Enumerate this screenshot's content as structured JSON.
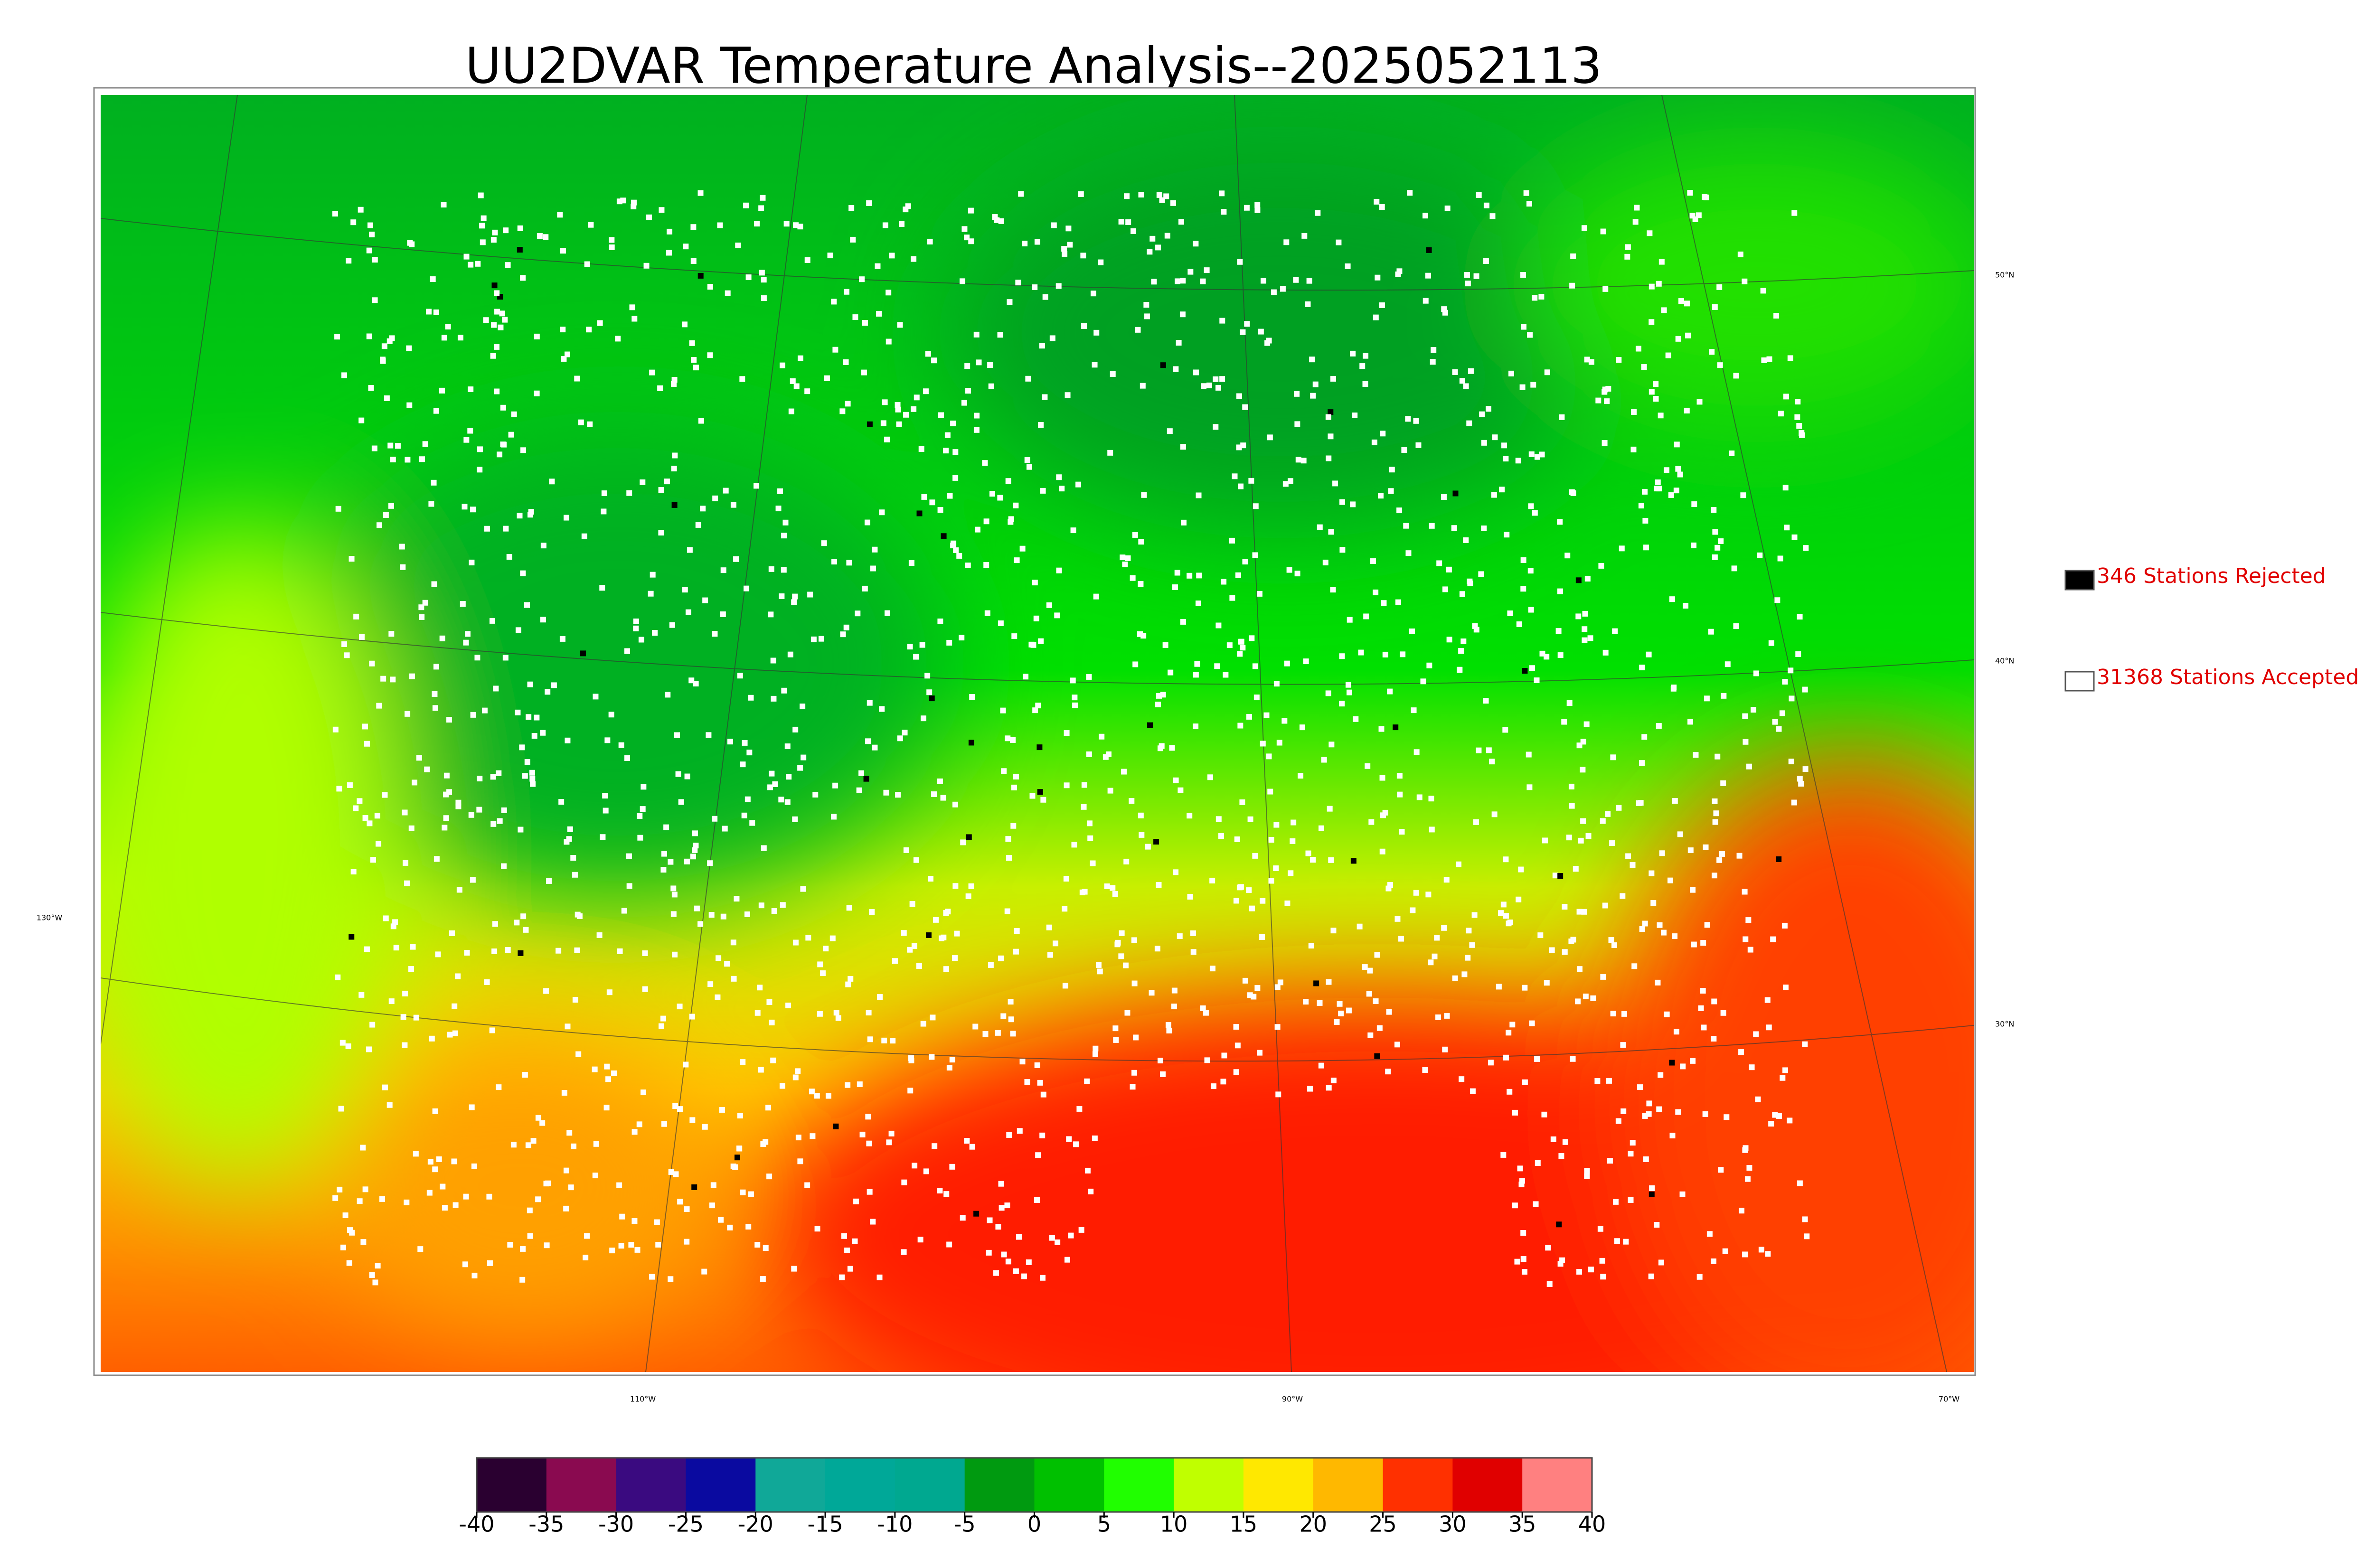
{
  "title": "UU2DVAR Temperature Analysis--2025052113",
  "legend": [
    {
      "label": "346 Stations Rejected",
      "color": "#000000"
    },
    {
      "label": "31368 Stations Accepted",
      "color": "#ffffff"
    }
  ],
  "latitude_labels": [
    "50°N",
    "40°N",
    "30°N"
  ],
  "longitude_labels": [
    "130°W",
    "110°W",
    "90°W",
    "70°W"
  ],
  "colorbar": {
    "ticks": [
      -40,
      -35,
      -30,
      -25,
      -20,
      -15,
      -10,
      -5,
      0,
      5,
      10,
      15,
      20,
      25,
      30,
      35,
      40
    ],
    "colors": [
      "#2a0030",
      "#8a0a50",
      "#3a0a80",
      "#0a0aa0",
      "#10a898",
      "#00a898",
      "#00a890",
      "#009a10",
      "#00c000",
      "#20ff00",
      "#c0ff00",
      "#ffe800",
      "#ffb800",
      "#ff3000",
      "#e00000",
      "#ff8080"
    ]
  }
}
